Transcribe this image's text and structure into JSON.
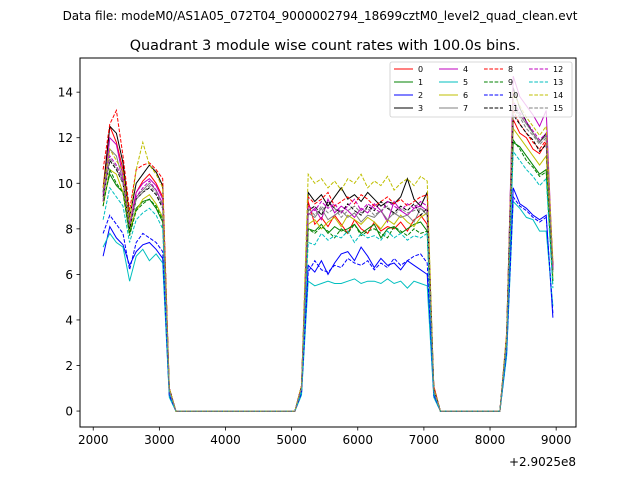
{
  "chart_data": {
    "type": "line",
    "suptitle": "Data file: modeM0/AS1A05_072T04_9000002794_18699cztM0_level2_quad_clean.evt",
    "title": "Quadrant 3 module wise count rates with 100.0s bins.",
    "xlabel": "",
    "ylabel": "",
    "x_offset_label": "+2.9025e8",
    "xlim": [
      1800,
      9300
    ],
    "ylim": [
      -0.7,
      15.5
    ],
    "x_ticks": [
      2000,
      3000,
      4000,
      5000,
      6000,
      7000,
      8000,
      9000
    ],
    "x_tick_labels": [
      "2000",
      "3000",
      "4000",
      "5000",
      "6000",
      "7000",
      "8000",
      "9000"
    ],
    "y_ticks": [
      0,
      2,
      4,
      6,
      8,
      10,
      12,
      14
    ],
    "y_tick_labels": [
      "0",
      "2",
      "4",
      "6",
      "8",
      "10",
      "12",
      "14"
    ],
    "grid": false,
    "legend_position": "top-right",
    "x": [
      2150,
      2250,
      2350,
      2450,
      2550,
      2650,
      2750,
      2850,
      2950,
      3050,
      3150,
      3250,
      3350,
      3450,
      3550,
      3650,
      3750,
      3850,
      3950,
      4050,
      4150,
      4250,
      4350,
      4450,
      4550,
      4650,
      4750,
      4850,
      4950,
      5050,
      5150,
      5250,
      5350,
      5450,
      5550,
      5650,
      5750,
      5850,
      5950,
      6050,
      6150,
      6250,
      6350,
      6450,
      6550,
      6650,
      6750,
      6850,
      6950,
      7050,
      7150,
      7250,
      7350,
      7450,
      7550,
      7650,
      7750,
      7850,
      7950,
      8050,
      8150,
      8250,
      8350,
      8450,
      8550,
      8650,
      8750,
      8850,
      8950
    ],
    "series": [
      {
        "name": "0",
        "color": "#ff0000",
        "dash": "solid",
        "values": [
          9.8,
          12.5,
          11.8,
          10.6,
          8.2,
          9.6,
          10.1,
          10.4,
          10.0,
          9.4,
          1.0,
          0.0,
          0,
          0,
          0,
          0,
          0,
          0,
          0,
          0,
          0,
          0,
          0,
          0,
          0,
          0,
          0,
          0,
          0,
          0,
          1.1,
          9.2,
          8.2,
          8.5,
          8.1,
          8.6,
          8.2,
          7.8,
          8.4,
          8.0,
          7.8,
          8.3,
          7.9,
          8.1,
          8.0,
          8.3,
          7.9,
          8.4,
          8.6,
          8.2,
          1.1,
          0.0,
          0,
          0,
          0,
          0,
          0,
          0,
          0,
          0,
          0,
          3.2,
          12.8,
          12.2,
          12.0,
          11.5,
          11.3,
          11.8,
          6.2
        ]
      },
      {
        "name": "1",
        "color": "#008000",
        "dash": "solid",
        "values": [
          9.2,
          10.4,
          9.9,
          9.6,
          7.8,
          8.9,
          9.2,
          9.3,
          8.9,
          8.3,
          0.9,
          0.0,
          0,
          0,
          0,
          0,
          0,
          0,
          0,
          0,
          0,
          0,
          0,
          0,
          0,
          0,
          0,
          0,
          0,
          0,
          1.0,
          8.0,
          7.9,
          8.2,
          7.8,
          8.1,
          7.9,
          8.0,
          8.2,
          7.8,
          8.0,
          8.2,
          7.6,
          8.0,
          8.1,
          7.8,
          8.0,
          8.2,
          8.3,
          7.9,
          1.0,
          0.0,
          0,
          0,
          0,
          0,
          0,
          0,
          0,
          0,
          0,
          3.0,
          11.8,
          11.6,
          11.2,
          10.8,
          10.4,
          10.6,
          5.7
        ]
      },
      {
        "name": "2",
        "color": "#0000ff",
        "dash": "solid",
        "values": [
          6.8,
          8.1,
          7.6,
          7.3,
          6.4,
          7.0,
          7.3,
          7.4,
          7.1,
          6.7,
          0.7,
          0.0,
          0,
          0,
          0,
          0,
          0,
          0,
          0,
          0,
          0,
          0,
          0,
          0,
          0,
          0,
          0,
          0,
          0,
          0,
          0.8,
          6.4,
          6.1,
          6.6,
          6.0,
          6.5,
          6.9,
          7.0,
          6.6,
          7.2,
          6.8,
          6.3,
          6.7,
          6.4,
          6.5,
          6.2,
          6.6,
          6.4,
          6.2,
          6.0,
          0.7,
          0.0,
          0,
          0,
          0,
          0,
          0,
          0,
          0,
          0,
          0,
          2.5,
          9.8,
          9.1,
          8.9,
          8.6,
          8.4,
          8.6,
          4.1
        ]
      },
      {
        "name": "3",
        "color": "#000000",
        "dash": "solid",
        "values": [
          9.6,
          12.5,
          12.2,
          10.9,
          8.5,
          10.0,
          10.4,
          10.8,
          10.5,
          9.9,
          1.0,
          0.0,
          0,
          0,
          0,
          0,
          0,
          0,
          0,
          0,
          0,
          0,
          0,
          0,
          0,
          0,
          0,
          0,
          0,
          0,
          1.1,
          9.6,
          9.2,
          9.5,
          9.0,
          9.4,
          9.8,
          9.3,
          9.5,
          9.2,
          9.6,
          9.3,
          9.0,
          9.2,
          9.1,
          9.4,
          10.2,
          9.3,
          9.0,
          9.6,
          1.0,
          0.0,
          0,
          0,
          0,
          0,
          0,
          0,
          0,
          0,
          0,
          3.3,
          14.2,
          13.3,
          12.7,
          12.2,
          11.8,
          12.2,
          6.4
        ]
      },
      {
        "name": "4",
        "color": "#bf00bf",
        "dash": "solid",
        "values": [
          9.2,
          12.0,
          11.7,
          10.3,
          8.1,
          9.6,
          10.0,
          10.2,
          9.9,
          9.3,
          0.9,
          0.0,
          0,
          0,
          0,
          0,
          0,
          0,
          0,
          0,
          0,
          0,
          0,
          0,
          0,
          0,
          0,
          0,
          0,
          0,
          1.0,
          8.6,
          8.9,
          8.4,
          9.3,
          8.7,
          9.0,
          8.8,
          8.5,
          8.9,
          8.7,
          9.1,
          8.8,
          8.3,
          9.2,
          8.8,
          8.6,
          8.9,
          9.0,
          8.8,
          0.9,
          0.0,
          0,
          0,
          0,
          0,
          0,
          0,
          0,
          0,
          0,
          3.1,
          14.7,
          13.8,
          13.4,
          13.0,
          12.5,
          13.2,
          6.2
        ]
      },
      {
        "name": "5",
        "color": "#00bfbf",
        "dash": "solid",
        "values": [
          7.2,
          7.8,
          7.4,
          7.2,
          5.7,
          6.8,
          7.1,
          6.6,
          6.9,
          6.5,
          0.6,
          0.0,
          0,
          0,
          0,
          0,
          0,
          0,
          0,
          0,
          0,
          0,
          0,
          0,
          0,
          0,
          0,
          0,
          0,
          0,
          0.7,
          5.7,
          5.5,
          5.6,
          5.7,
          5.6,
          5.6,
          5.7,
          5.8,
          5.6,
          5.7,
          5.7,
          5.6,
          5.8,
          5.6,
          5.7,
          5.4,
          5.7,
          5.6,
          5.5,
          0.6,
          0.0,
          0,
          0,
          0,
          0,
          0,
          0,
          0,
          0,
          0,
          2.4,
          9.2,
          8.9,
          8.5,
          8.4,
          7.9,
          7.9,
          4.6
        ]
      },
      {
        "name": "6",
        "color": "#bfbf00",
        "dash": "solid",
        "values": [
          9.0,
          10.6,
          10.4,
          9.6,
          8.0,
          8.8,
          9.3,
          9.5,
          9.1,
          8.5,
          0.9,
          0.0,
          0,
          0,
          0,
          0,
          0,
          0,
          0,
          0,
          0,
          0,
          0,
          0,
          0,
          0,
          0,
          0,
          0,
          0,
          1.0,
          8.2,
          8.4,
          8.0,
          8.3,
          8.5,
          8.1,
          8.6,
          8.4,
          8.2,
          8.5,
          8.3,
          8.0,
          8.4,
          8.2,
          8.6,
          8.3,
          8.1,
          8.5,
          8.7,
          0.9,
          0.0,
          0,
          0,
          0,
          0,
          0,
          0,
          0,
          0,
          0,
          3.1,
          12.4,
          12.0,
          11.6,
          11.2,
          10.8,
          11.2,
          5.9
        ]
      },
      {
        "name": "7",
        "color": "#808080",
        "dash": "solid",
        "values": [
          9.6,
          11.5,
          11.2,
          10.1,
          8.1,
          9.4,
          9.7,
          10.0,
          9.7,
          9.1,
          0.9,
          0.0,
          0,
          0,
          0,
          0,
          0,
          0,
          0,
          0,
          0,
          0,
          0,
          0,
          0,
          0,
          0,
          0,
          0,
          0,
          1.0,
          8.7,
          8.5,
          8.9,
          8.4,
          8.6,
          8.8,
          8.5,
          8.7,
          8.3,
          8.6,
          8.5,
          8.8,
          8.4,
          8.7,
          8.5,
          8.6,
          8.3,
          8.9,
          8.6,
          0.9,
          0.0,
          0,
          0,
          0,
          0,
          0,
          0,
          0,
          0,
          0,
          3.1,
          13.4,
          13.0,
          12.6,
          12.2,
          11.8,
          12.1,
          6.1
        ]
      },
      {
        "name": "8",
        "color": "#ff0000",
        "dash": "dashed",
        "values": [
          10.6,
          12.6,
          13.2,
          11.2,
          8.8,
          10.6,
          10.8,
          10.9,
          10.6,
          10.2,
          1.0,
          0.0,
          0,
          0,
          0,
          0,
          0,
          0,
          0,
          0,
          0,
          0,
          0,
          0,
          0,
          0,
          0,
          0,
          0,
          0,
          1.1,
          9.4,
          9.1,
          9.3,
          9.6,
          9.0,
          9.2,
          9.4,
          9.1,
          9.5,
          9.3,
          9.0,
          9.2,
          9.4,
          9.1,
          9.3,
          9.0,
          9.2,
          9.4,
          9.5,
          1.0,
          0.0,
          0,
          0,
          0,
          0,
          0,
          0,
          0,
          0,
          0,
          3.4,
          13.2,
          12.6,
          12.2,
          11.8,
          11.5,
          11.9,
          6.5
        ]
      },
      {
        "name": "9",
        "color": "#008000",
        "dash": "dashed",
        "values": [
          9.0,
          10.6,
          10.0,
          9.6,
          7.7,
          8.8,
          9.1,
          9.3,
          9.0,
          8.4,
          0.9,
          0.0,
          0,
          0,
          0,
          0,
          0,
          0,
          0,
          0,
          0,
          0,
          0,
          0,
          0,
          0,
          0,
          0,
          0,
          0,
          1.0,
          8.0,
          7.8,
          8.1,
          7.9,
          7.6,
          8.0,
          7.8,
          8.2,
          7.7,
          7.9,
          8.0,
          7.8,
          7.6,
          8.1,
          7.9,
          7.7,
          8.0,
          7.8,
          7.9,
          0.9,
          0.0,
          0,
          0,
          0,
          0,
          0,
          0,
          0,
          0,
          0,
          3.0,
          11.9,
          11.5,
          11.0,
          10.7,
          10.3,
          10.5,
          5.6
        ]
      },
      {
        "name": "10",
        "color": "#0000ff",
        "dash": "dashed",
        "values": [
          7.8,
          8.6,
          8.2,
          7.8,
          6.2,
          7.4,
          7.8,
          7.6,
          7.4,
          7.0,
          0.7,
          0.0,
          0,
          0,
          0,
          0,
          0,
          0,
          0,
          0,
          0,
          0,
          0,
          0,
          0,
          0,
          0,
          0,
          0,
          0,
          0.8,
          6.1,
          6.6,
          6.2,
          6.1,
          6.4,
          6.3,
          6.7,
          6.5,
          6.4,
          6.6,
          6.2,
          6.5,
          6.3,
          6.7,
          6.4,
          6.6,
          6.8,
          6.9,
          6.5,
          0.7,
          0.0,
          0,
          0,
          0,
          0,
          0,
          0,
          0,
          0,
          0,
          2.6,
          9.4,
          9.0,
          8.8,
          8.5,
          8.3,
          8.5,
          4.3
        ]
      },
      {
        "name": "11",
        "color": "#000000",
        "dash": "dashed",
        "values": [
          9.4,
          11.0,
          10.6,
          10.0,
          8.0,
          9.3,
          9.6,
          9.8,
          9.5,
          8.9,
          0.9,
          0.0,
          0,
          0,
          0,
          0,
          0,
          0,
          0,
          0,
          0,
          0,
          0,
          0,
          0,
          0,
          0,
          0,
          0,
          0,
          1.0,
          8.8,
          9.0,
          8.6,
          9.2,
          8.9,
          8.7,
          9.1,
          8.8,
          8.6,
          9.0,
          8.8,
          9.2,
          8.9,
          8.7,
          9.0,
          8.8,
          9.1,
          8.6,
          8.9,
          0.9,
          0.0,
          0,
          0,
          0,
          0,
          0,
          0,
          0,
          0,
          0,
          3.2,
          13.0,
          12.6,
          12.2,
          11.9,
          11.4,
          11.7,
          6.2
        ]
      },
      {
        "name": "12",
        "color": "#bf00bf",
        "dash": "dashed",
        "values": [
          9.5,
          11.2,
          10.8,
          10.1,
          8.2,
          9.4,
          9.8,
          10.1,
          9.7,
          9.1,
          0.9,
          0.0,
          0,
          0,
          0,
          0,
          0,
          0,
          0,
          0,
          0,
          0,
          0,
          0,
          0,
          0,
          0,
          0,
          0,
          0,
          1.0,
          9.0,
          8.8,
          9.2,
          8.9,
          9.1,
          8.7,
          9.0,
          9.3,
          8.8,
          9.1,
          8.9,
          8.7,
          9.2,
          9.0,
          8.8,
          9.1,
          8.9,
          9.2,
          9.0,
          0.9,
          0.0,
          0,
          0,
          0,
          0,
          0,
          0,
          0,
          0,
          0,
          3.2,
          13.6,
          13.1,
          12.7,
          12.3,
          11.9,
          12.2,
          6.3
        ]
      },
      {
        "name": "13",
        "color": "#00bfbf",
        "dash": "dashed",
        "values": [
          8.4,
          9.8,
          9.4,
          9.0,
          7.4,
          8.4,
          8.7,
          8.9,
          8.6,
          8.0,
          0.8,
          0.0,
          0,
          0,
          0,
          0,
          0,
          0,
          0,
          0,
          0,
          0,
          0,
          0,
          0,
          0,
          0,
          0,
          0,
          0,
          0.9,
          7.4,
          7.3,
          7.8,
          7.5,
          7.7,
          7.6,
          7.9,
          7.4,
          7.8,
          7.6,
          7.7,
          7.5,
          7.9,
          7.6,
          7.8,
          7.5,
          7.7,
          7.6,
          7.8,
          0.8,
          0.0,
          0,
          0,
          0,
          0,
          0,
          0,
          0,
          0,
          0,
          2.9,
          11.4,
          11.0,
          10.6,
          10.3,
          9.9,
          10.2,
          5.4
        ]
      },
      {
        "name": "14",
        "color": "#bfbf00",
        "dash": "dashed",
        "values": [
          9.8,
          11.5,
          11.0,
          10.5,
          8.4,
          10.6,
          11.8,
          10.8,
          10.4,
          9.8,
          1.0,
          0.0,
          0,
          0,
          0,
          0,
          0,
          0,
          0,
          0,
          0,
          0,
          0,
          0,
          0,
          0,
          0,
          0,
          0,
          0,
          1.1,
          10.4,
          10.0,
          10.2,
          9.8,
          10.1,
          9.7,
          10.2,
          10.0,
          10.4,
          9.8,
          10.1,
          9.9,
          10.3,
          9.7,
          10.0,
          10.2,
          9.9,
          10.3,
          10.1,
          1.0,
          0.0,
          0,
          0,
          0,
          0,
          0,
          0,
          0,
          0,
          0,
          3.4,
          14.0,
          13.4,
          12.9,
          12.5,
          12.1,
          12.5,
          6.6
        ]
      },
      {
        "name": "15",
        "color": "#808080",
        "dash": "dashed",
        "values": [
          9.3,
          11.1,
          10.7,
          10.0,
          8.1,
          9.3,
          9.6,
          9.9,
          9.6,
          9.0,
          0.9,
          0.0,
          0,
          0,
          0,
          0,
          0,
          0,
          0,
          0,
          0,
          0,
          0,
          0,
          0,
          0,
          0,
          0,
          0,
          0,
          1.0,
          8.9,
          8.6,
          9.0,
          8.7,
          8.9,
          8.5,
          8.8,
          9.0,
          8.7,
          8.9,
          8.6,
          8.8,
          9.0,
          8.6,
          8.9,
          8.7,
          8.8,
          8.9,
          8.7,
          0.9,
          0.0,
          0,
          0,
          0,
          0,
          0,
          0,
          0,
          0,
          0,
          3.1,
          13.3,
          12.9,
          12.4,
          12.1,
          11.7,
          12.0,
          6.2
        ]
      }
    ]
  }
}
